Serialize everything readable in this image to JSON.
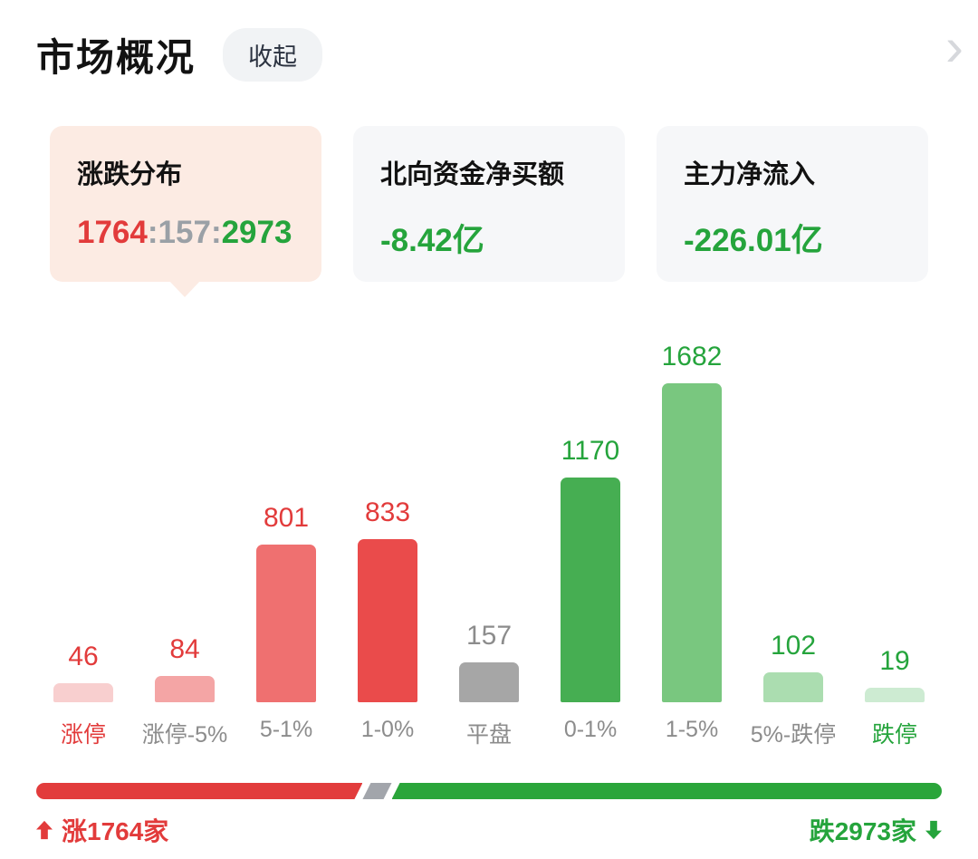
{
  "header": {
    "title": "市场概况",
    "collapse_label": "收起",
    "chevron": "›"
  },
  "cards": {
    "distribution": {
      "title": "涨跌分布",
      "up": "1764",
      "colon1": ":",
      "flat": "157",
      "colon2": ":",
      "down": "2973"
    },
    "northbound": {
      "title": "北向资金净买额",
      "value": "-8.42亿"
    },
    "main_inflow": {
      "title": "主力净流入",
      "value": "-226.01亿"
    }
  },
  "chart_data": {
    "type": "bar",
    "title": "涨跌分布",
    "categories": [
      "涨停",
      "涨停-5%",
      "5-1%",
      "1-0%",
      "平盘",
      "0-1%",
      "1-5%",
      "5%-跌停",
      "跌停"
    ],
    "values": [
      46,
      84,
      801,
      833,
      157,
      1170,
      1682,
      102,
      19
    ],
    "bar_colors": [
      "#f8cfcf",
      "#f4a5a5",
      "#ef7070",
      "#ea4b4b",
      "#a6a6a6",
      "#46ae52",
      "#79c77f",
      "#abddb0",
      "#cdebd2"
    ],
    "value_label_colors": [
      "#e23b3b",
      "#e23b3b",
      "#e23b3b",
      "#e23b3b",
      "#8c8c8c",
      "#25a43c",
      "#25a43c",
      "#25a43c",
      "#25a43c"
    ],
    "category_label_colors": [
      "#e23b3b",
      "#8c8c8c",
      "#8c8c8c",
      "#8c8c8c",
      "#8c8c8c",
      "#8c8c8c",
      "#8c8c8c",
      "#8c8c8c",
      "#25a43c"
    ],
    "ylim": [
      0,
      1682
    ],
    "grid": false,
    "legend": false
  },
  "summary_bar": {
    "up_count": 1764,
    "flat_count": 157,
    "down_count": 2973,
    "colors": {
      "up": "#e23c3c",
      "flat": "#a2a5ab",
      "down": "#2aa53a"
    }
  },
  "footer": {
    "up_label": "涨1764家",
    "down_label": "跌2973家"
  }
}
